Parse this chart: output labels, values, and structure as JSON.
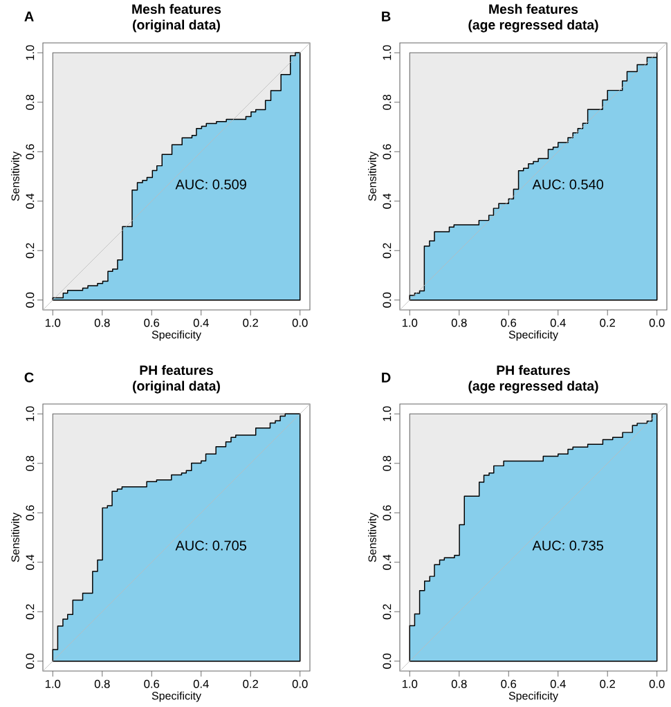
{
  "chart_data": [
    {
      "type": "area",
      "title": "Mesh features",
      "subtitle": "(original data)",
      "xlabel": "Specificity",
      "ylabel": "Sensitivity",
      "annotations": [
        "A",
        "AUC: 0.509"
      ],
      "xlim": [
        1.04,
        -0.04
      ],
      "ylim": [
        -0.04,
        1.04
      ],
      "xticks": [
        {
          "value": 1,
          "label": "1.0"
        },
        {
          "value": 0.8,
          "label": "0.8"
        },
        {
          "value": 0.6,
          "label": "0.6"
        },
        {
          "value": 0.4,
          "label": "0.4"
        },
        {
          "value": 0.2,
          "label": "0.2"
        },
        {
          "value": 0,
          "label": "0.0"
        }
      ],
      "yticks": [
        {
          "value": 0,
          "label": "0.0"
        },
        {
          "value": 0.2,
          "label": "0.2"
        },
        {
          "value": 0.4,
          "label": "0.4"
        },
        {
          "value": 0.6,
          "label": "0.6"
        },
        {
          "value": 0.8,
          "label": "0.8"
        },
        {
          "value": 1,
          "label": "1.0"
        }
      ],
      "series": [
        {
          "color": "#87ceeb",
          "x": [
            1.0,
            0.958,
            0.94,
            0.879,
            0.858,
            0.819,
            0.798,
            0.777,
            0.758,
            0.738,
            0.718,
            0.679,
            0.658,
            0.637,
            0.619,
            0.597,
            0.579,
            0.558,
            0.518,
            0.477,
            0.437,
            0.419,
            0.398,
            0.379,
            0.338,
            0.298,
            0.219,
            0.198,
            0.179,
            0.14,
            0.118,
            0.077,
            0.039,
            0.019,
            0.0
          ],
          "values": [
            0.009,
            0.028,
            0.039,
            0.048,
            0.058,
            0.067,
            0.076,
            0.116,
            0.125,
            0.162,
            0.297,
            0.445,
            0.475,
            0.484,
            0.496,
            0.524,
            0.543,
            0.589,
            0.628,
            0.656,
            0.666,
            0.694,
            0.703,
            0.714,
            0.722,
            0.731,
            0.742,
            0.761,
            0.77,
            0.807,
            0.847,
            0.912,
            0.988,
            1.0,
            1.0
          ]
        },
        {
          "type": "line",
          "color": "#bbbbbb",
          "x": [
            1.04,
            -0.04
          ],
          "values": [
            -0.04,
            1.04
          ]
        }
      ]
    },
    {
      "type": "area",
      "title": "Mesh features",
      "subtitle": "(age regressed data)",
      "xlabel": "Specificity",
      "ylabel": "Sensitivity",
      "annotations": [
        "B",
        "AUC: 0.540"
      ],
      "xlim": [
        1.04,
        -0.04
      ],
      "ylim": [
        -0.04,
        1.04
      ],
      "xticks": [
        {
          "value": 1,
          "label": "1.0"
        },
        {
          "value": 0.8,
          "label": "0.8"
        },
        {
          "value": 0.6,
          "label": "0.6"
        },
        {
          "value": 0.4,
          "label": "0.4"
        },
        {
          "value": 0.2,
          "label": "0.2"
        },
        {
          "value": 0,
          "label": "0.0"
        }
      ],
      "yticks": [
        {
          "value": 0,
          "label": "0.0"
        },
        {
          "value": 0.2,
          "label": "0.2"
        },
        {
          "value": 0.4,
          "label": "0.4"
        },
        {
          "value": 0.6,
          "label": "0.6"
        },
        {
          "value": 0.8,
          "label": "0.8"
        },
        {
          "value": 1,
          "label": "1.0"
        }
      ],
      "series": [
        {
          "color": "#87ceeb",
          "x": [
            1.0,
            0.98,
            0.96,
            0.941,
            0.92,
            0.9,
            0.84,
            0.821,
            0.72,
            0.68,
            0.661,
            0.64,
            0.6,
            0.58,
            0.56,
            0.54,
            0.52,
            0.5,
            0.48,
            0.44,
            0.42,
            0.4,
            0.36,
            0.34,
            0.32,
            0.3,
            0.28,
            0.22,
            0.2,
            0.14,
            0.121,
            0.08,
            0.04,
            0.0
          ],
          "values": [
            0.019,
            0.028,
            0.037,
            0.218,
            0.239,
            0.276,
            0.295,
            0.304,
            0.322,
            0.343,
            0.371,
            0.39,
            0.409,
            0.448,
            0.523,
            0.533,
            0.551,
            0.56,
            0.572,
            0.609,
            0.618,
            0.637,
            0.657,
            0.676,
            0.694,
            0.715,
            0.771,
            0.809,
            0.848,
            0.886,
            0.924,
            0.952,
            0.981,
            1.0
          ]
        },
        {
          "type": "line",
          "color": "#bbbbbb",
          "x": [
            1.04,
            -0.04
          ],
          "values": [
            -0.04,
            1.04
          ]
        }
      ]
    },
    {
      "type": "area",
      "title": "PH features",
      "subtitle": "(original data)",
      "xlabel": "Specificity",
      "ylabel": "Sensitivity",
      "annotations": [
        "C",
        "AUC: 0.705"
      ],
      "xlim": [
        1.04,
        -0.04
      ],
      "ylim": [
        -0.04,
        1.04
      ],
      "xticks": [
        {
          "value": 1,
          "label": "1.0"
        },
        {
          "value": 0.8,
          "label": "0.8"
        },
        {
          "value": 0.6,
          "label": "0.6"
        },
        {
          "value": 0.4,
          "label": "0.4"
        },
        {
          "value": 0.2,
          "label": "0.2"
        },
        {
          "value": 0,
          "label": "0.0"
        }
      ],
      "yticks": [
        {
          "value": 0,
          "label": "0.0"
        },
        {
          "value": 0.2,
          "label": "0.2"
        },
        {
          "value": 0.4,
          "label": "0.4"
        },
        {
          "value": 0.6,
          "label": "0.6"
        },
        {
          "value": 0.8,
          "label": "0.8"
        },
        {
          "value": 1,
          "label": "1.0"
        }
      ],
      "series": [
        {
          "color": "#87ceeb",
          "x": [
            1.0,
            0.98,
            0.959,
            0.94,
            0.919,
            0.879,
            0.839,
            0.819,
            0.799,
            0.779,
            0.76,
            0.739,
            0.72,
            0.62,
            0.58,
            0.52,
            0.479,
            0.46,
            0.439,
            0.4,
            0.381,
            0.34,
            0.3,
            0.279,
            0.26,
            0.179,
            0.121,
            0.1,
            0.08,
            0.06,
            0.0
          ],
          "values": [
            0.047,
            0.142,
            0.17,
            0.189,
            0.247,
            0.275,
            0.363,
            0.409,
            0.62,
            0.629,
            0.687,
            0.696,
            0.705,
            0.726,
            0.733,
            0.753,
            0.761,
            0.771,
            0.801,
            0.81,
            0.838,
            0.867,
            0.887,
            0.905,
            0.914,
            0.943,
            0.963,
            0.972,
            0.991,
            1.0,
            1.0
          ]
        },
        {
          "type": "line",
          "color": "#bbbbbb",
          "x": [
            1.04,
            -0.04
          ],
          "values": [
            -0.04,
            1.04
          ]
        }
      ]
    },
    {
      "type": "area",
      "title": "PH features",
      "subtitle": "(age regressed data)",
      "xlabel": "Specificity",
      "ylabel": "Sensitivity",
      "annotations": [
        "D",
        "AUC: 0.735"
      ],
      "xlim": [
        1.04,
        -0.04
      ],
      "ylim": [
        -0.04,
        1.04
      ],
      "xticks": [
        {
          "value": 1,
          "label": "1.0"
        },
        {
          "value": 0.8,
          "label": "0.8"
        },
        {
          "value": 0.6,
          "label": "0.6"
        },
        {
          "value": 0.4,
          "label": "0.4"
        },
        {
          "value": 0.2,
          "label": "0.2"
        },
        {
          "value": 0,
          "label": "0.0"
        }
      ],
      "yticks": [
        {
          "value": 0,
          "label": "0.0"
        },
        {
          "value": 0.2,
          "label": "0.2"
        },
        {
          "value": 0.4,
          "label": "0.4"
        },
        {
          "value": 0.6,
          "label": "0.6"
        },
        {
          "value": 0.8,
          "label": "0.8"
        },
        {
          "value": 1,
          "label": "1.0"
        }
      ],
      "series": [
        {
          "color": "#87ceeb",
          "x": [
            1.0,
            0.98,
            0.96,
            0.94,
            0.919,
            0.9,
            0.879,
            0.86,
            0.819,
            0.799,
            0.779,
            0.719,
            0.7,
            0.679,
            0.66,
            0.62,
            0.46,
            0.4,
            0.36,
            0.34,
            0.28,
            0.219,
            0.179,
            0.139,
            0.099,
            0.08,
            0.04,
            0.02,
            0.0
          ],
          "values": [
            0.143,
            0.191,
            0.285,
            0.324,
            0.343,
            0.39,
            0.409,
            0.418,
            0.428,
            0.552,
            0.667,
            0.724,
            0.752,
            0.761,
            0.79,
            0.809,
            0.829,
            0.838,
            0.857,
            0.866,
            0.877,
            0.896,
            0.905,
            0.925,
            0.953,
            0.962,
            0.971,
            1.0,
            1.0
          ]
        },
        {
          "type": "line",
          "color": "#bbbbbb",
          "x": [
            1.04,
            -0.04
          ],
          "values": [
            -0.04,
            1.04
          ]
        }
      ]
    }
  ]
}
